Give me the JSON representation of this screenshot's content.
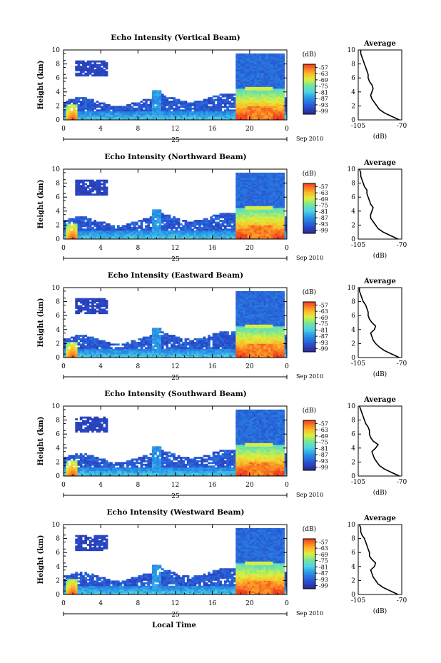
{
  "figure": {
    "x_axis_title": "Local Time",
    "date_label": "25",
    "month_label": "Sep 2010"
  },
  "chart_data": [
    {
      "type": "heatmap",
      "title": "Echo Intensity (Vertical Beam)",
      "ylabel": "Height (km)",
      "xlim": [
        0,
        24
      ],
      "ylim": [
        0,
        10
      ],
      "x_ticks": [
        "0",
        "4",
        "8",
        "12",
        "16",
        "20",
        "0"
      ],
      "y_ticks": [
        "0",
        "2",
        "4",
        "6",
        "8",
        "10"
      ],
      "colorbar": {
        "unit": "(dB)",
        "ticks": [
          "-57",
          "-63",
          "-69",
          "-75",
          "-81",
          "-87",
          "-93",
          "-99"
        ],
        "range": [
          -99,
          -57
        ]
      },
      "profile": {
        "title": "Average",
        "xlabel": "(dB)",
        "xlim": [
          -105,
          -70
        ],
        "x_ticks": [
          "-105",
          "-70"
        ],
        "ylim": [
          0,
          10
        ],
        "y_ticks": [
          "0",
          "2",
          "4",
          "6",
          "8",
          "10"
        ],
        "heights": [
          0,
          0.5,
          1,
          1.5,
          2,
          2.5,
          3,
          3.5,
          4,
          4.5,
          5,
          5.5,
          6,
          6.5,
          7,
          7.5,
          8,
          8.5,
          9,
          9.5,
          10
        ],
        "values": [
          -72,
          -78,
          -84,
          -88,
          -90,
          -92,
          -94,
          -95,
          -94,
          -93,
          -94,
          -96,
          -97,
          -97,
          -98,
          -99,
          -100,
          -101,
          -102,
          -103,
          -103
        ]
      }
    },
    {
      "type": "heatmap",
      "title": "Echo Intensity (Northward Beam)",
      "ylabel": "Height (km)",
      "xlim": [
        0,
        24
      ],
      "ylim": [
        0,
        10
      ],
      "x_ticks": [
        "0",
        "4",
        "8",
        "12",
        "16",
        "20",
        "0"
      ],
      "y_ticks": [
        "0",
        "2",
        "4",
        "6",
        "8",
        "10"
      ],
      "colorbar": {
        "unit": "(dB)",
        "ticks": [
          "-57",
          "-63",
          "-69",
          "-75",
          "-81",
          "-87",
          "-93",
          "-99"
        ],
        "range": [
          -99,
          -57
        ]
      },
      "profile": {
        "title": "Average",
        "xlabel": "(dB)",
        "xlim": [
          -105,
          -70
        ],
        "x_ticks": [
          "-105",
          "-70"
        ],
        "ylim": [
          0,
          10
        ],
        "y_ticks": [
          "0",
          "2",
          "4",
          "6",
          "8",
          "10"
        ],
        "heights": [
          0,
          0.5,
          1,
          1.5,
          2,
          2.5,
          3,
          3.5,
          4,
          4.5,
          5,
          5.5,
          6,
          6.5,
          7,
          7.5,
          8,
          8.5,
          9,
          9.5,
          10
        ],
        "values": [
          -73,
          -79,
          -85,
          -89,
          -91,
          -93,
          -95,
          -95,
          -94,
          -93,
          -95,
          -96,
          -97,
          -98,
          -98,
          -100,
          -101,
          -102,
          -103,
          -103,
          -104
        ]
      }
    },
    {
      "type": "heatmap",
      "title": "Echo Intensity (Eastward Beam)",
      "ylabel": "Height (km)",
      "xlim": [
        0,
        24
      ],
      "ylim": [
        0,
        10
      ],
      "x_ticks": [
        "0",
        "4",
        "8",
        "12",
        "16",
        "20",
        "0"
      ],
      "y_ticks": [
        "0",
        "2",
        "4",
        "6",
        "8",
        "10"
      ],
      "colorbar": {
        "unit": "(dB)",
        "ticks": [
          "-57",
          "-63",
          "-69",
          "-75",
          "-81",
          "-87",
          "-93",
          "-99"
        ],
        "range": [
          -99,
          -57
        ]
      },
      "profile": {
        "title": "Average",
        "xlabel": "(dB)",
        "xlim": [
          -105,
          -70
        ],
        "x_ticks": [
          "-105",
          "-70"
        ],
        "ylim": [
          0,
          10
        ],
        "y_ticks": [
          "0",
          "2",
          "4",
          "6",
          "8",
          "10"
        ],
        "heights": [
          0,
          0.5,
          1,
          1.5,
          2,
          2.5,
          3,
          3.5,
          4,
          4.5,
          5,
          5.5,
          6,
          6.5,
          7,
          7.5,
          8,
          8.5,
          9,
          9.5,
          10
        ],
        "values": [
          -72,
          -78,
          -84,
          -88,
          -91,
          -93,
          -94,
          -95,
          -92,
          -91,
          -94,
          -96,
          -97,
          -97,
          -98,
          -99,
          -101,
          -102,
          -103,
          -104,
          -104
        ]
      }
    },
    {
      "type": "heatmap",
      "title": "Echo Intensity (Southward Beam)",
      "ylabel": "Height (km)",
      "xlim": [
        0,
        24
      ],
      "ylim": [
        0,
        10
      ],
      "x_ticks": [
        "0",
        "4",
        "8",
        "12",
        "16",
        "20",
        "0"
      ],
      "y_ticks": [
        "0",
        "2",
        "4",
        "6",
        "8",
        "10"
      ],
      "colorbar": {
        "unit": "(dB)",
        "ticks": [
          "-57",
          "-63",
          "-69",
          "-75",
          "-81",
          "-87",
          "-93",
          "-99"
        ],
        "range": [
          -99,
          -57
        ]
      },
      "profile": {
        "title": "Average",
        "xlabel": "(dB)",
        "xlim": [
          -105,
          -70
        ],
        "x_ticks": [
          "-105",
          "-70"
        ],
        "ylim": [
          0,
          10
        ],
        "y_ticks": [
          "0",
          "2",
          "4",
          "6",
          "8",
          "10"
        ],
        "heights": [
          0,
          0.5,
          1,
          1.5,
          2,
          2.5,
          3,
          3.5,
          4,
          4.5,
          5,
          5.5,
          6,
          6.5,
          7,
          7.5,
          8,
          8.5,
          9,
          9.5,
          10
        ],
        "values": [
          -72,
          -78,
          -84,
          -88,
          -90,
          -92,
          -93,
          -94,
          -91,
          -89,
          -93,
          -95,
          -96,
          -96,
          -97,
          -99,
          -100,
          -101,
          -102,
          -103,
          -104
        ]
      }
    },
    {
      "type": "heatmap",
      "title": "Echo Intensity (Westward Beam)",
      "ylabel": "Height (km)",
      "xlim": [
        0,
        24
      ],
      "ylim": [
        0,
        10
      ],
      "x_ticks": [
        "0",
        "4",
        "8",
        "12",
        "16",
        "20",
        "0"
      ],
      "y_ticks": [
        "0",
        "2",
        "4",
        "6",
        "8",
        "10"
      ],
      "colorbar": {
        "unit": "(dB)",
        "ticks": [
          "-57",
          "-63",
          "-69",
          "-75",
          "-81",
          "-87",
          "-93",
          "-99"
        ],
        "range": [
          -99,
          -57
        ]
      },
      "profile": {
        "title": "Average",
        "xlabel": "(dB)",
        "xlim": [
          -105,
          -70
        ],
        "x_ticks": [
          "-105",
          "-70"
        ],
        "ylim": [
          0,
          10
        ],
        "y_ticks": [
          "0",
          "2",
          "4",
          "6",
          "8",
          "10"
        ],
        "heights": [
          0,
          0.5,
          1,
          1.5,
          2,
          2.5,
          3,
          3.5,
          4,
          4.5,
          5,
          5.5,
          6,
          6.5,
          7,
          7.5,
          8,
          8.5,
          9,
          9.5,
          10
        ],
        "values": [
          -73,
          -79,
          -85,
          -89,
          -91,
          -93,
          -94,
          -95,
          -92,
          -91,
          -94,
          -96,
          -96,
          -97,
          -98,
          -99,
          -100,
          -102,
          -103,
          -103,
          -104
        ]
      }
    }
  ]
}
